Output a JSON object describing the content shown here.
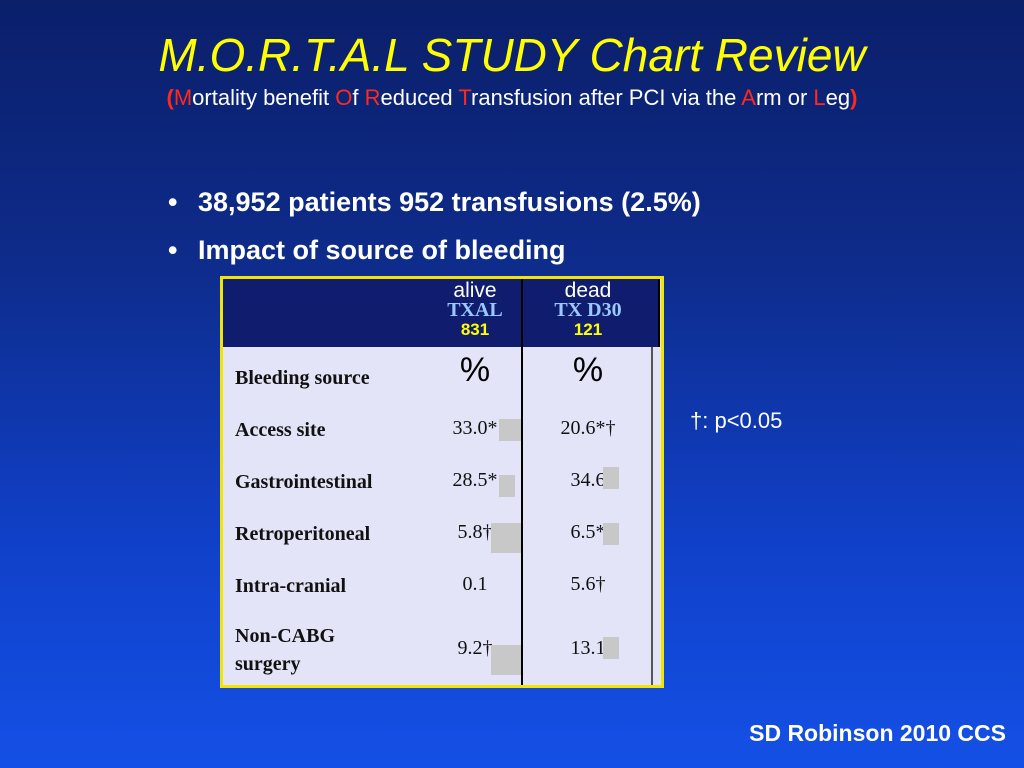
{
  "slide": {
    "title": "M.O.R.T.A.L STUDY Chart Review",
    "subtitle": {
      "open": "(",
      "m": "M",
      "m_rest": "ortality benefit ",
      "o": "O",
      "o_rest": "f ",
      "r": "R",
      "r_rest": "educed ",
      "t": "T",
      "t_rest": "ransfusion after PCI via the ",
      "a": "A",
      "a_rest": "rm or ",
      "l": "L",
      "l_rest": "eg",
      "close": ")"
    },
    "bullets": [
      "38,952 patients 952 transfusions (2.5%)",
      "Impact of source of bleeding"
    ],
    "note": "†: p<0.05",
    "footer": "SD Robinson 2010 CCS"
  },
  "table": {
    "columns": [
      {
        "label": "alive",
        "code": "TXAL",
        "count": "831",
        "unit": "%"
      },
      {
        "label": "dead",
        "code": "TX D30",
        "count": "121",
        "unit": "%"
      }
    ],
    "header_row_label": "Bleeding source",
    "rows": [
      {
        "label": "Access site",
        "alive": "33.0*",
        "dead": "20.6*†"
      },
      {
        "label": "Gastrointestinal",
        "alive": "28.5*",
        "dead": "34.6"
      },
      {
        "label": "Retroperitoneal",
        "alive": "5.8†",
        "dead": "6.5*"
      },
      {
        "label": "Intra-cranial",
        "alive": "0.1",
        "dead": "5.6†"
      },
      {
        "label": "Non-CABG",
        "label2": "surgery",
        "alive": "9.2†",
        "dead": "13.1"
      }
    ]
  },
  "colors": {
    "title": "#ffff00",
    "acronym_letters": "#ff2a1a",
    "table_border": "#f2e600",
    "table_header_bg": "#101d6e",
    "table_body_bg": "#e4e4f8",
    "count_text": "#ffff00"
  }
}
